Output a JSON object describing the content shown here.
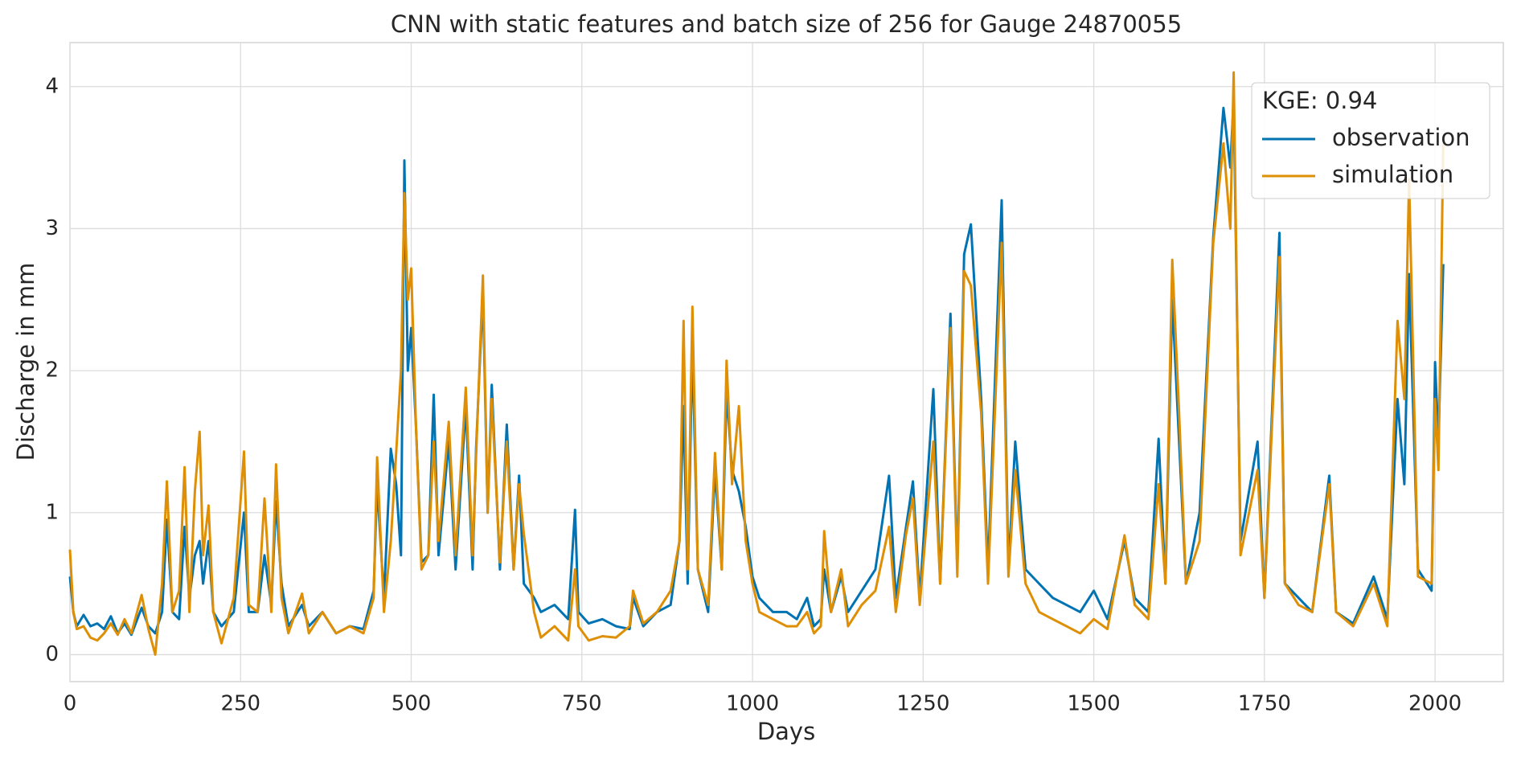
{
  "chart_data": {
    "type": "line",
    "title": "CNN with static features and batch size of 256 for Gauge 24870055",
    "x_label": "Days",
    "y_label": "Discharge in mm",
    "legend_title": "KGE: 0.94",
    "legend_position": "upper right",
    "grid": true,
    "xlim": [
      0,
      2100
    ],
    "ylim": [
      -0.19,
      4.31
    ],
    "xticks": [
      0,
      250,
      500,
      750,
      1000,
      1250,
      1500,
      1750,
      2000
    ],
    "yticks": [
      0,
      1,
      2,
      3,
      4
    ],
    "x": [
      0,
      5,
      10,
      20,
      30,
      40,
      50,
      60,
      70,
      80,
      90,
      105,
      115,
      125,
      135,
      142,
      150,
      160,
      168,
      175,
      183,
      190,
      195,
      203,
      210,
      222,
      240,
      255,
      262,
      275,
      285,
      295,
      302,
      310,
      320,
      340,
      350,
      370,
      390,
      410,
      430,
      445,
      450,
      460,
      470,
      478,
      485,
      490,
      495,
      500,
      507,
      515,
      525,
      533,
      540,
      555,
      565,
      580,
      590,
      595,
      605,
      612,
      618,
      630,
      640,
      650,
      658,
      665,
      680,
      690,
      710,
      730,
      740,
      745,
      760,
      780,
      800,
      820,
      825,
      840,
      860,
      880,
      893,
      899,
      905,
      912,
      920,
      935,
      945,
      955,
      962,
      970,
      980,
      990,
      1000,
      1010,
      1030,
      1050,
      1065,
      1080,
      1090,
      1100,
      1105,
      1115,
      1130,
      1140,
      1160,
      1180,
      1200,
      1210,
      1225,
      1235,
      1245,
      1265,
      1275,
      1290,
      1300,
      1310,
      1320,
      1335,
      1345,
      1365,
      1375,
      1385,
      1400,
      1420,
      1440,
      1460,
      1480,
      1500,
      1520,
      1545,
      1560,
      1580,
      1595,
      1605,
      1615,
      1625,
      1635,
      1655,
      1675,
      1690,
      1700,
      1705,
      1715,
      1740,
      1750,
      1772,
      1780,
      1800,
      1820,
      1845,
      1855,
      1880,
      1910,
      1930,
      1945,
      1955,
      1962,
      1975,
      1995,
      2000,
      2005,
      2012
    ],
    "series": [
      {
        "name": "observation",
        "color": "#0173b2",
        "values": [
          0.55,
          0.3,
          0.2,
          0.28,
          0.2,
          0.22,
          0.18,
          0.27,
          0.15,
          0.22,
          0.14,
          0.33,
          0.2,
          0.15,
          0.3,
          0.95,
          0.3,
          0.25,
          0.9,
          0.4,
          0.7,
          0.8,
          0.5,
          0.8,
          0.3,
          0.2,
          0.3,
          1.0,
          0.3,
          0.3,
          0.7,
          0.35,
          1.08,
          0.5,
          0.2,
          0.35,
          0.2,
          0.3,
          0.15,
          0.2,
          0.18,
          0.45,
          1.2,
          0.4,
          1.45,
          1.2,
          0.7,
          3.48,
          2.0,
          2.3,
          1.6,
          0.65,
          0.7,
          1.83,
          0.7,
          1.5,
          0.6,
          1.75,
          0.6,
          1.45,
          2.55,
          1.0,
          1.9,
          0.6,
          1.62,
          0.6,
          1.26,
          0.5,
          0.4,
          0.3,
          0.35,
          0.25,
          1.02,
          0.3,
          0.22,
          0.25,
          0.2,
          0.18,
          0.4,
          0.2,
          0.3,
          0.35,
          0.8,
          1.75,
          0.5,
          2.17,
          0.6,
          0.3,
          1.3,
          0.6,
          1.85,
          1.3,
          1.15,
          0.9,
          0.55,
          0.4,
          0.3,
          0.3,
          0.25,
          0.4,
          0.2,
          0.25,
          0.6,
          0.3,
          0.55,
          0.3,
          0.45,
          0.6,
          1.26,
          0.4,
          0.9,
          1.22,
          0.4,
          1.87,
          0.5,
          2.4,
          0.6,
          2.82,
          3.03,
          1.8,
          0.6,
          3.2,
          0.6,
          1.5,
          0.6,
          0.5,
          0.4,
          0.35,
          0.3,
          0.45,
          0.25,
          0.8,
          0.4,
          0.3,
          1.52,
          0.5,
          2.5,
          1.5,
          0.5,
          1.0,
          2.94,
          3.85,
          3.43,
          3.92,
          0.8,
          1.5,
          0.4,
          2.97,
          0.5,
          0.4,
          0.3,
          1.26,
          0.3,
          0.22,
          0.55,
          0.25,
          1.8,
          1.2,
          2.68,
          0.6,
          0.45,
          2.06,
          1.5,
          2.75
        ]
      },
      {
        "name": "simulation",
        "color": "#de8f05",
        "values": [
          0.74,
          0.3,
          0.18,
          0.2,
          0.12,
          0.1,
          0.15,
          0.22,
          0.14,
          0.25,
          0.15,
          0.42,
          0.18,
          0.0,
          0.5,
          1.22,
          0.3,
          0.45,
          1.32,
          0.3,
          1.15,
          1.57,
          0.7,
          1.05,
          0.3,
          0.08,
          0.4,
          1.43,
          0.35,
          0.3,
          1.1,
          0.3,
          1.34,
          0.4,
          0.15,
          0.43,
          0.15,
          0.3,
          0.15,
          0.2,
          0.15,
          0.4,
          1.39,
          0.3,
          0.8,
          1.42,
          2.0,
          3.25,
          2.5,
          2.72,
          1.6,
          0.6,
          0.7,
          1.5,
          0.8,
          1.64,
          0.7,
          1.88,
          0.7,
          1.4,
          2.67,
          1.0,
          1.8,
          0.65,
          1.5,
          0.6,
          1.2,
          0.85,
          0.3,
          0.12,
          0.2,
          0.1,
          0.6,
          0.2,
          0.1,
          0.13,
          0.12,
          0.2,
          0.45,
          0.22,
          0.3,
          0.45,
          0.8,
          2.35,
          0.6,
          2.45,
          0.6,
          0.35,
          1.42,
          0.6,
          2.07,
          1.2,
          1.75,
          0.8,
          0.5,
          0.3,
          0.25,
          0.2,
          0.2,
          0.3,
          0.15,
          0.2,
          0.87,
          0.3,
          0.6,
          0.2,
          0.35,
          0.45,
          0.9,
          0.3,
          0.85,
          1.1,
          0.35,
          1.5,
          0.5,
          2.3,
          0.55,
          2.7,
          2.6,
          1.7,
          0.5,
          2.9,
          0.55,
          1.3,
          0.5,
          0.3,
          0.25,
          0.2,
          0.15,
          0.25,
          0.18,
          0.84,
          0.35,
          0.25,
          1.2,
          0.5,
          2.78,
          1.7,
          0.5,
          0.8,
          2.9,
          3.6,
          3.0,
          4.1,
          0.7,
          1.3,
          0.4,
          2.8,
          0.5,
          0.35,
          0.3,
          1.2,
          0.3,
          0.2,
          0.5,
          0.2,
          2.35,
          1.8,
          3.35,
          0.55,
          0.5,
          1.8,
          1.3,
          3.6
        ]
      }
    ]
  }
}
